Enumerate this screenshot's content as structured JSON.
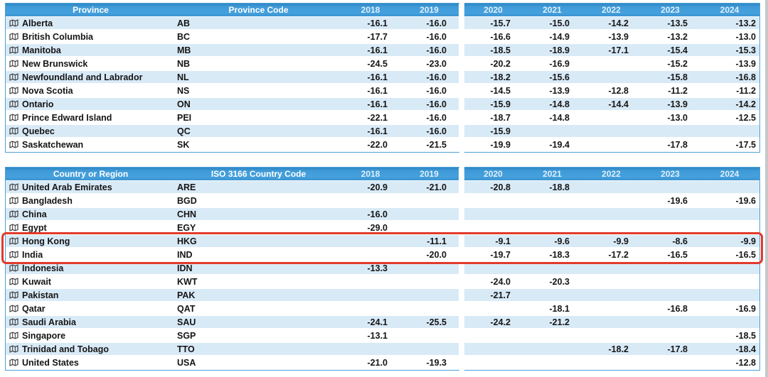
{
  "colors": {
    "header_blue": "#3f9ad7",
    "header_text": "#ffffff",
    "year_header_text": "#dfeffc",
    "row_alt_blue": "#d9eaf7",
    "row_white": "#ffffff",
    "table_border_blue": "#4da0d6",
    "highlight_red": "#e23a2c",
    "edge_strip_gray": "#c6c9cb",
    "value_text": "#151515"
  },
  "years": [
    "2018",
    "2019",
    "2020",
    "2021",
    "2022",
    "2023",
    "2024"
  ],
  "tables": [
    {
      "name_header": "Province",
      "code_header": "Province Code",
      "rows": [
        {
          "name": "Alberta",
          "code": "AB",
          "values": [
            "-16.1",
            "-16.0",
            "-15.7",
            "-15.0",
            "-14.2",
            "-13.5",
            "-13.2"
          ]
        },
        {
          "name": "British Columbia",
          "code": "BC",
          "values": [
            "-17.7",
            "-16.0",
            "-16.6",
            "-14.9",
            "-13.9",
            "-13.2",
            "-13.0"
          ]
        },
        {
          "name": "Manitoba",
          "code": "MB",
          "values": [
            "-16.1",
            "-16.0",
            "-18.5",
            "-18.9",
            "-17.1",
            "-15.4",
            "-15.3"
          ]
        },
        {
          "name": "New Brunswick",
          "code": "NB",
          "values": [
            "-24.5",
            "-23.0",
            "-20.2",
            "-16.9",
            "",
            "-15.2",
            "-13.9"
          ]
        },
        {
          "name": "Newfoundland and Labrador",
          "code": "NL",
          "values": [
            "-16.1",
            "-16.0",
            "-18.2",
            "-15.6",
            "",
            "-15.8",
            "-16.8"
          ]
        },
        {
          "name": "Nova Scotia",
          "code": "NS",
          "values": [
            "-16.1",
            "-16.0",
            "-14.5",
            "-13.9",
            "-12.8",
            "-11.2",
            "-11.2"
          ]
        },
        {
          "name": "Ontario",
          "code": "ON",
          "values": [
            "-16.1",
            "-16.0",
            "-15.9",
            "-14.8",
            "-14.4",
            "-13.9",
            "-14.2"
          ]
        },
        {
          "name": "Prince Edward Island",
          "code": "PEI",
          "values": [
            "-22.1",
            "-16.0",
            "-18.7",
            "-14.8",
            "",
            "-13.0",
            "-12.5"
          ]
        },
        {
          "name": "Quebec",
          "code": "QC",
          "values": [
            "-16.1",
            "-16.0",
            "-15.9",
            "",
            "",
            "",
            ""
          ]
        },
        {
          "name": "Saskatchewan",
          "code": "SK",
          "values": [
            "-22.0",
            "-21.5",
            "-19.9",
            "-19.4",
            "",
            "-17.8",
            "-17.5"
          ]
        }
      ]
    },
    {
      "name_header": "Country or Region",
      "code_header": "ISO 3166 Country Code",
      "highlighted_rows": [
        "Hong Kong",
        "India"
      ],
      "rows": [
        {
          "name": "United Arab Emirates",
          "code": "ARE",
          "values": [
            "-20.9",
            "-21.0",
            "-20.8",
            "-18.8",
            "",
            "",
            ""
          ]
        },
        {
          "name": "Bangladesh",
          "code": "BGD",
          "values": [
            "",
            "",
            "",
            "",
            "",
            "-19.6",
            "-19.6"
          ]
        },
        {
          "name": "China",
          "code": "CHN",
          "values": [
            "-16.0",
            "",
            "",
            "",
            "",
            "",
            ""
          ]
        },
        {
          "name": "Egypt",
          "code": "EGY",
          "values": [
            "-29.0",
            "",
            "",
            "",
            "",
            "",
            ""
          ]
        },
        {
          "name": "Hong Kong",
          "code": "HKG",
          "values": [
            "",
            "-11.1",
            "-9.1",
            "-9.6",
            "-9.9",
            "-8.6",
            "-9.9"
          ]
        },
        {
          "name": "India",
          "code": "IND",
          "values": [
            "",
            "-20.0",
            "-19.7",
            "-18.3",
            "-17.2",
            "-16.5",
            "-16.5"
          ]
        },
        {
          "name": "Indonesia",
          "code": "IDN",
          "values": [
            "-13.3",
            "",
            "",
            "",
            "",
            "",
            ""
          ]
        },
        {
          "name": "Kuwait",
          "code": "KWT",
          "values": [
            "",
            "",
            "-24.0",
            "-20.3",
            "",
            "",
            ""
          ]
        },
        {
          "name": "Pakistan",
          "code": "PAK",
          "values": [
            "",
            "",
            "-21.7",
            "",
            "",
            "",
            ""
          ]
        },
        {
          "name": "Qatar",
          "code": "QAT",
          "values": [
            "",
            "",
            "",
            "-18.1",
            "",
            "-16.8",
            "-16.9"
          ]
        },
        {
          "name": "Saudi Arabia",
          "code": "SAU",
          "values": [
            "-24.1",
            "-25.5",
            "-24.2",
            "-21.2",
            "",
            "",
            ""
          ]
        },
        {
          "name": "Singapore",
          "code": "SGP",
          "values": [
            "-13.1",
            "",
            "",
            "",
            "",
            "",
            "-18.5"
          ]
        },
        {
          "name": "Trinidad and Tobago",
          "code": "TTO",
          "values": [
            "",
            "",
            "",
            "",
            "-18.2",
            "-17.8",
            "-18.4"
          ]
        },
        {
          "name": "United States",
          "code": "USA",
          "values": [
            "-21.0",
            "-19.3",
            "",
            "",
            "",
            "",
            "-12.8"
          ]
        }
      ]
    }
  ]
}
